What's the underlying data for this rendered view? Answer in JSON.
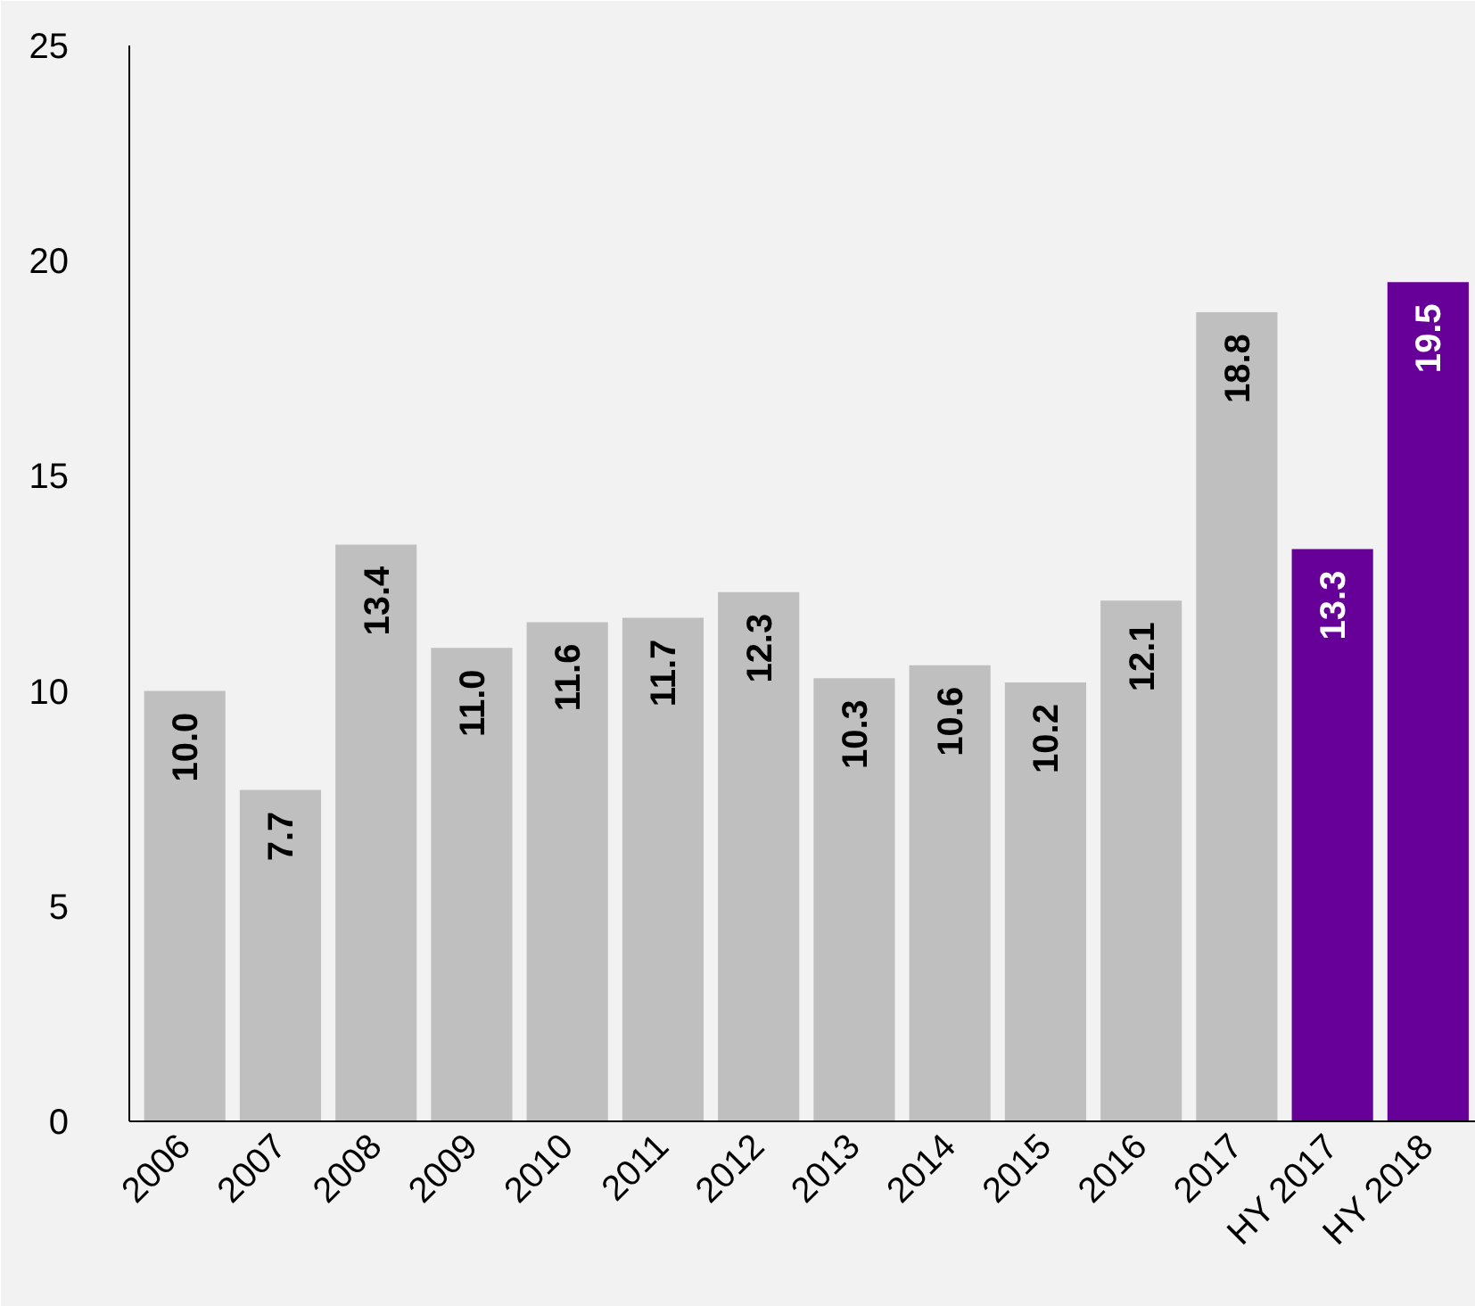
{
  "chart_data": {
    "type": "bar",
    "categories": [
      "2006",
      "2007",
      "2008",
      "2009",
      "2010",
      "2011",
      "2012",
      "2013",
      "2014",
      "2015",
      "2016",
      "2017",
      "HY 2017",
      "HY 2018"
    ],
    "values": [
      10.0,
      7.7,
      13.4,
      11.0,
      11.6,
      11.7,
      12.3,
      10.3,
      10.6,
      10.2,
      12.1,
      18.8,
      13.3,
      19.5
    ],
    "colors": [
      "#bfbfbf",
      "#bfbfbf",
      "#bfbfbf",
      "#bfbfbf",
      "#bfbfbf",
      "#bfbfbf",
      "#bfbfbf",
      "#bfbfbf",
      "#bfbfbf",
      "#bfbfbf",
      "#bfbfbf",
      "#bfbfbf",
      "#660099",
      "#660099"
    ],
    "ylim": [
      0,
      25
    ],
    "yticks": [
      0,
      5,
      10,
      15,
      20,
      25
    ],
    "value_labels": [
      "10.0",
      "7.7",
      "13.4",
      "11.0",
      "11.6",
      "11.7",
      "12.3",
      "10.3",
      "10.6",
      "10.2",
      "12.1",
      "18.8",
      "13.3",
      "19.5"
    ],
    "grid": false
  }
}
